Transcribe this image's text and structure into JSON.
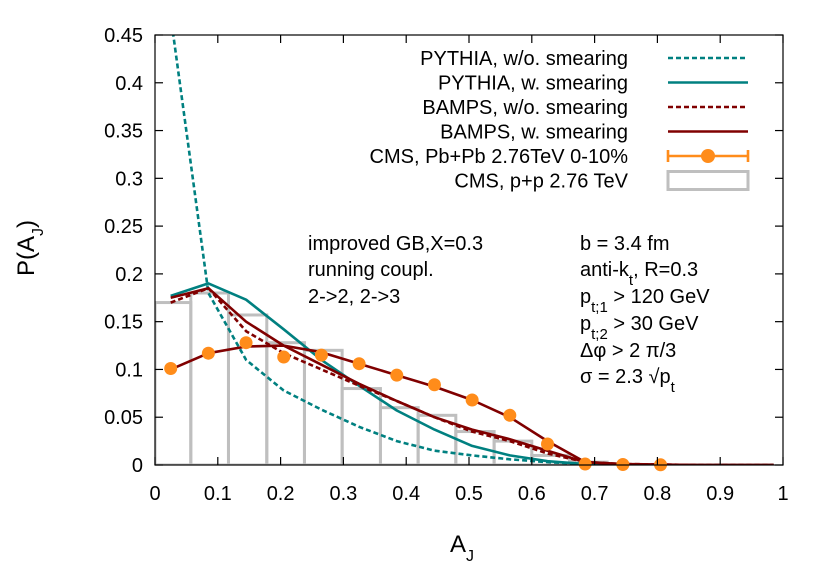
{
  "chart_data": {
    "type": "line",
    "xlabel": "A",
    "xlabel_sub": "J",
    "ylabel": "P(A",
    "ylabel_sub": "J",
    "ylabel_close": ")",
    "xlim": [
      0,
      1
    ],
    "ylim": [
      0,
      0.45
    ],
    "xticks": [
      {
        "v": 0,
        "label": "0"
      },
      {
        "v": 0.1,
        "label": "0.1"
      },
      {
        "v": 0.2,
        "label": "0.2"
      },
      {
        "v": 0.3,
        "label": "0.3"
      },
      {
        "v": 0.4,
        "label": "0.4"
      },
      {
        "v": 0.5,
        "label": "0.5"
      },
      {
        "v": 0.6,
        "label": "0.6"
      },
      {
        "v": 0.7,
        "label": "0.7"
      },
      {
        "v": 0.8,
        "label": "0.8"
      },
      {
        "v": 0.9,
        "label": "0.9"
      },
      {
        "v": 1,
        "label": "1"
      }
    ],
    "yticks": [
      {
        "v": 0,
        "label": "0"
      },
      {
        "v": 0.05,
        "label": "0.05"
      },
      {
        "v": 0.1,
        "label": "0.1"
      },
      {
        "v": 0.15,
        "label": "0.15"
      },
      {
        "v": 0.2,
        "label": "0.2"
      },
      {
        "v": 0.25,
        "label": "0.25"
      },
      {
        "v": 0.3,
        "label": "0.3"
      },
      {
        "v": 0.35,
        "label": "0.35"
      },
      {
        "v": 0.4,
        "label": "0.4"
      },
      {
        "v": 0.45,
        "label": "0.45"
      }
    ],
    "grid": false,
    "legend_position": "top-right",
    "series": [
      {
        "name": "PYTHIA, w/o. smearing",
        "style": "dashed",
        "color": "#008080",
        "x": [
          0.025,
          0.085,
          0.145,
          0.205,
          0.265,
          0.325,
          0.385,
          0.445,
          0.505,
          0.565,
          0.625,
          0.685,
          0.745,
          0.805,
          0.865,
          0.925,
          0.985
        ],
        "y": [
          0.47,
          0.18,
          0.11,
          0.078,
          0.058,
          0.04,
          0.025,
          0.015,
          0.01,
          0.006,
          0.003,
          0.001,
          0.0005,
          0.0002,
          0,
          0,
          0
        ]
      },
      {
        "name": "PYTHIA, w. smearing",
        "style": "solid",
        "color": "#008080",
        "x": [
          0.025,
          0.085,
          0.145,
          0.205,
          0.265,
          0.325,
          0.385,
          0.445,
          0.505,
          0.565,
          0.625,
          0.685,
          0.745,
          0.805,
          0.865,
          0.925,
          0.985
        ],
        "y": [
          0.177,
          0.19,
          0.173,
          0.142,
          0.11,
          0.083,
          0.057,
          0.037,
          0.02,
          0.01,
          0.004,
          0.001,
          0.0005,
          0.0002,
          0,
          0,
          0
        ]
      },
      {
        "name": "BAMPS, w/o. smearing",
        "style": "dashed",
        "color": "#800000",
        "x": [
          0.025,
          0.085,
          0.145,
          0.205,
          0.265,
          0.325,
          0.385,
          0.445,
          0.505,
          0.565,
          0.625,
          0.685,
          0.745,
          0.805,
          0.865,
          0.925,
          0.985
        ],
        "y": [
          0.17,
          0.185,
          0.14,
          0.117,
          0.1,
          0.083,
          0.067,
          0.05,
          0.035,
          0.025,
          0.012,
          0.003,
          0.001,
          0.0005,
          0,
          0,
          0
        ]
      },
      {
        "name": "BAMPS, w. smearing",
        "style": "solid",
        "color": "#800000",
        "x": [
          0.025,
          0.085,
          0.145,
          0.205,
          0.265,
          0.325,
          0.385,
          0.445,
          0.505,
          0.565,
          0.625,
          0.685,
          0.745,
          0.805,
          0.865,
          0.925,
          0.985
        ],
        "y": [
          0.175,
          0.185,
          0.15,
          0.125,
          0.105,
          0.085,
          0.067,
          0.05,
          0.037,
          0.027,
          0.015,
          0.003,
          0.001,
          0.0005,
          0,
          0,
          0
        ]
      },
      {
        "name": "BAMPS, w. smearing (improved GB)",
        "legend": false,
        "style": "solid",
        "color": "#800000",
        "x": [
          0.025,
          0.085,
          0.145,
          0.205,
          0.265,
          0.325,
          0.385,
          0.445,
          0.505,
          0.565,
          0.625,
          0.685,
          0.745,
          0.805,
          0.865,
          0.925,
          0.985
        ],
        "y": [
          0.1,
          0.117,
          0.124,
          0.125,
          0.118,
          0.106,
          0.094,
          0.082,
          0.068,
          0.05,
          0.025,
          0.003,
          0.0005,
          0.0002,
          0,
          0,
          0
        ]
      }
    ],
    "cms_pbpb": {
      "name": "CMS, Pb+Pb 2.76TeV 0-10%",
      "color": "#ff8c1a",
      "x": [
        0.025,
        0.085,
        0.145,
        0.205,
        0.265,
        0.325,
        0.385,
        0.445,
        0.505,
        0.565,
        0.625,
        0.685,
        0.745,
        0.805
      ],
      "y": [
        0.101,
        0.117,
        0.128,
        0.113,
        0.115,
        0.106,
        0.094,
        0.084,
        0.068,
        0.052,
        0.022,
        0.001,
        0.0005,
        0.0002
      ]
    },
    "cms_pp": {
      "name": "CMS, p+p 2.76 TeV",
      "color": "#bfbfbf",
      "bins": [
        {
          "x0": 0.0,
          "x1": 0.057,
          "y": 0.17
        },
        {
          "x0": 0.057,
          "x1": 0.117,
          "y": 0.18
        },
        {
          "x0": 0.117,
          "x1": 0.178,
          "y": 0.157
        },
        {
          "x0": 0.178,
          "x1": 0.238,
          "y": 0.128
        },
        {
          "x0": 0.238,
          "x1": 0.298,
          "y": 0.12
        },
        {
          "x0": 0.298,
          "x1": 0.359,
          "y": 0.08
        },
        {
          "x0": 0.359,
          "x1": 0.419,
          "y": 0.06
        },
        {
          "x0": 0.419,
          "x1": 0.479,
          "y": 0.052
        },
        {
          "x0": 0.479,
          "x1": 0.54,
          "y": 0.035
        },
        {
          "x0": 0.54,
          "x1": 0.6,
          "y": 0.025
        },
        {
          "x0": 0.6,
          "x1": 0.66,
          "y": 0.01
        },
        {
          "x0": 0.66,
          "x1": 0.72,
          "y": 0.003
        }
      ]
    },
    "annotation_left": [
      "improved GB,X=0.3",
      "running coupl.",
      "2->2, 2->3"
    ],
    "annotation_right": {
      "b": "b = 3.4 fm",
      "antikt_pre": "anti-k",
      "antikt_sub": "t",
      "antikt_post": ", R=0.3",
      "pt1_pre": "p",
      "pt1_sub": "t;1",
      "pt1_post": " > 120 GeV",
      "pt2_pre": "p",
      "pt2_sub": "t;2",
      "pt2_post": " > 30 GeV",
      "dphi": "Δφ > 2 π/3",
      "sigma_pre": "σ = 2.3 √p",
      "sigma_sub": "t"
    }
  }
}
